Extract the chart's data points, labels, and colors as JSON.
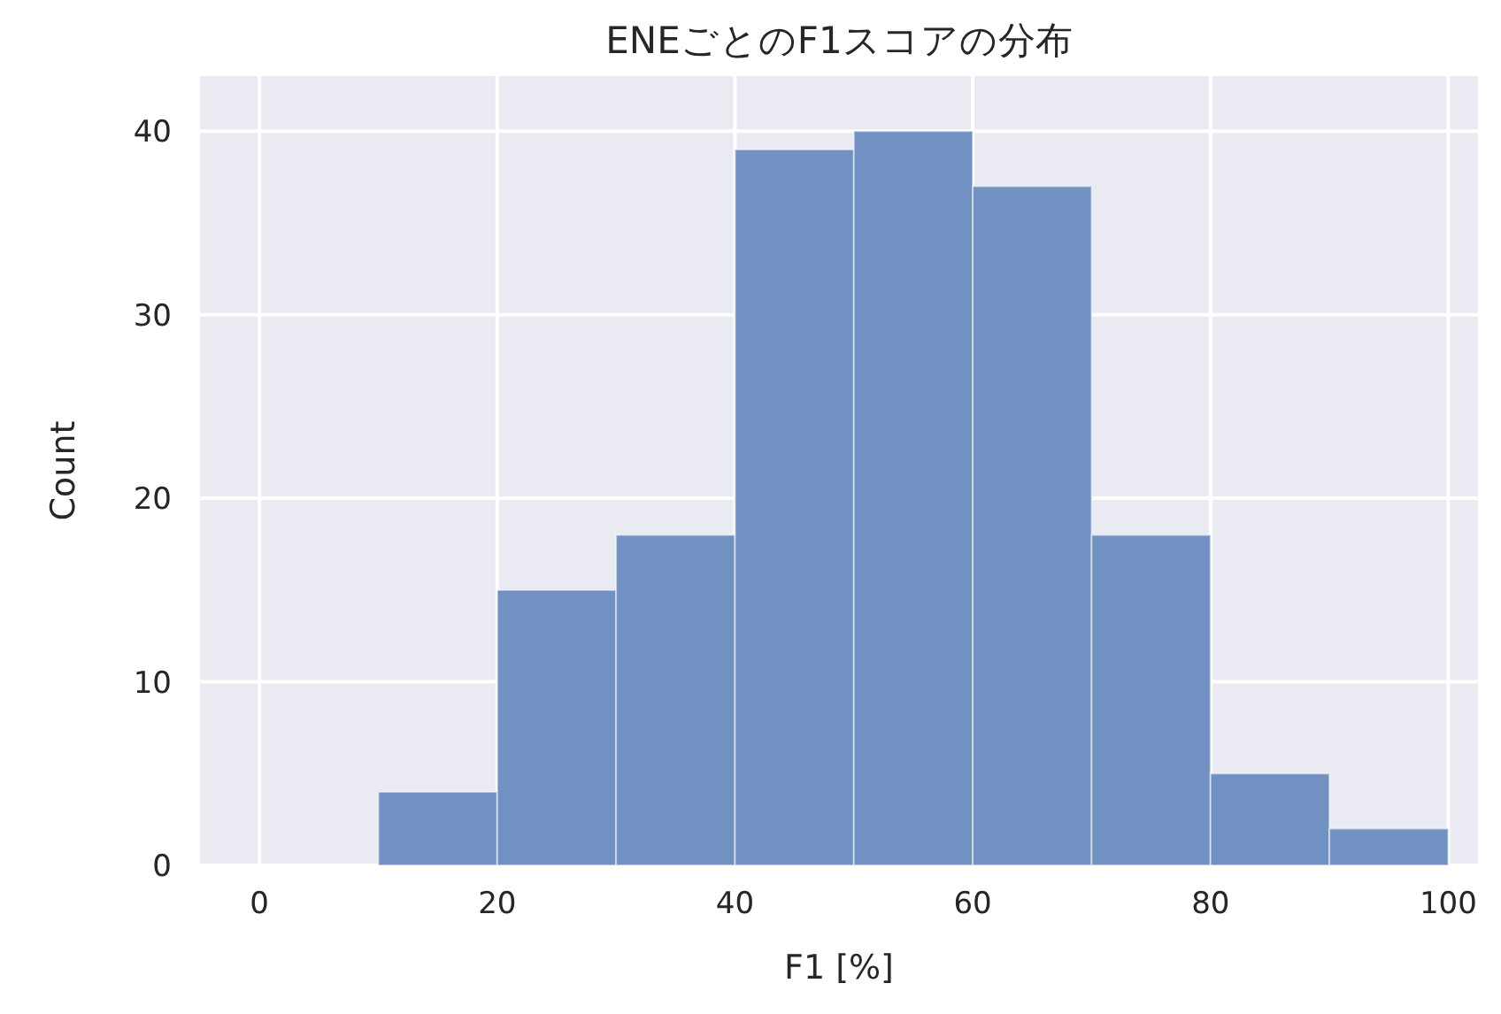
{
  "chart_data": {
    "type": "histogram",
    "title": "ENEごとのF1スコアの分布",
    "xlabel": "F1 [%]",
    "ylabel": "Count",
    "bins": [
      10,
      20,
      30,
      40,
      50,
      60,
      70,
      80,
      90,
      100
    ],
    "values": [
      4,
      15,
      18,
      39,
      40,
      37,
      18,
      5,
      2
    ],
    "color": "#7191c2",
    "xlim": [
      -5,
      102.5
    ],
    "xticks": [
      0,
      20,
      40,
      60,
      80,
      100
    ],
    "ylim": [
      0,
      43
    ],
    "yticks": [
      0,
      10,
      20,
      30,
      40
    ],
    "grid": true
  }
}
